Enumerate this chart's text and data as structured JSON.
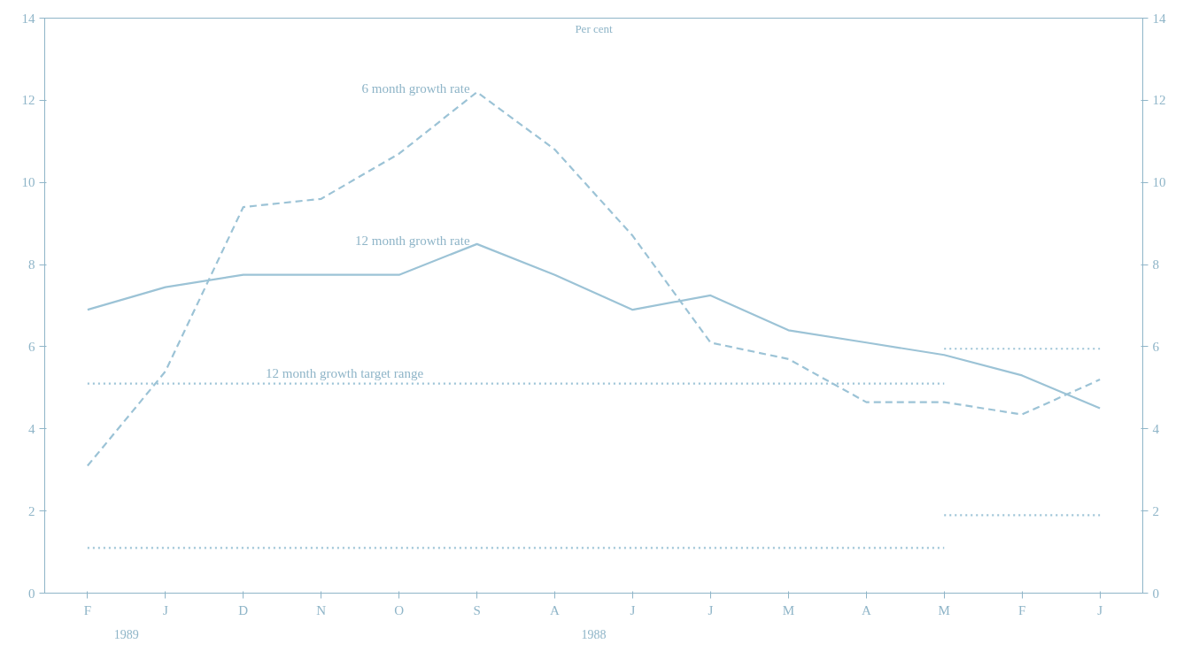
{
  "chart_data": {
    "type": "line",
    "categories": [
      "F",
      "J",
      "D",
      "N",
      "O",
      "S",
      "A",
      "J",
      "J",
      "M",
      "A",
      "M",
      "F",
      "J"
    ],
    "series": [
      {
        "name": "12 month growth rate",
        "color": "#9cc3d6",
        "line_style": "solid",
        "values": [
          6.9,
          7.45,
          7.75,
          7.75,
          7.75,
          8.5,
          7.75,
          6.9,
          7.25,
          6.4,
          6.1,
          5.8,
          5.3,
          4.5
        ]
      },
      {
        "name": "6 month growth rate",
        "color": "#9cc3d6",
        "line_style": "dashed",
        "values": [
          3.1,
          5.4,
          9.4,
          9.6,
          10.7,
          12.2,
          10.8,
          8.7,
          6.1,
          5.7,
          4.65,
          4.65,
          4.35,
          5.2
        ]
      },
      {
        "color": "#9cc3d6",
        "line_style": "dotted",
        "values": [
          5.1,
          5.1,
          5.1,
          5.1,
          5.1,
          5.1,
          5.1,
          5.1,
          5.1,
          5.1,
          5.1,
          5.1,
          null,
          null
        ]
      },
      {
        "color": "#9cc3d6",
        "line_style": "dotted",
        "values": [
          1.1,
          1.1,
          1.1,
          1.1,
          1.1,
          1.1,
          1.1,
          1.1,
          1.1,
          1.1,
          1.1,
          1.1,
          null,
          null
        ]
      },
      {
        "color": "#9cc3d6",
        "line_style": "dotted",
        "values": [
          null,
          null,
          null,
          null,
          null,
          null,
          null,
          null,
          null,
          null,
          null,
          5.95,
          5.95,
          5.95
        ]
      },
      {
        "color": "#9cc3d6",
        "line_style": "dotted",
        "values": [
          null,
          null,
          null,
          null,
          null,
          null,
          null,
          null,
          null,
          null,
          null,
          1.9,
          1.9,
          1.9
        ]
      }
    ],
    "ylim": [
      0,
      14
    ],
    "yticks": [
      0,
      2,
      4,
      6,
      8,
      10,
      12,
      14
    ],
    "y2lim": [
      0,
      14
    ],
    "y2ticks": [
      0,
      2,
      4,
      6,
      8,
      10,
      12,
      14
    ],
    "annotations": [
      "Per cent",
      {
        "text": "12 month growth target range",
        "x": "N",
        "y": 5.1
      },
      "1989",
      "1988"
    ],
    "grid": false,
    "marker": "none"
  }
}
